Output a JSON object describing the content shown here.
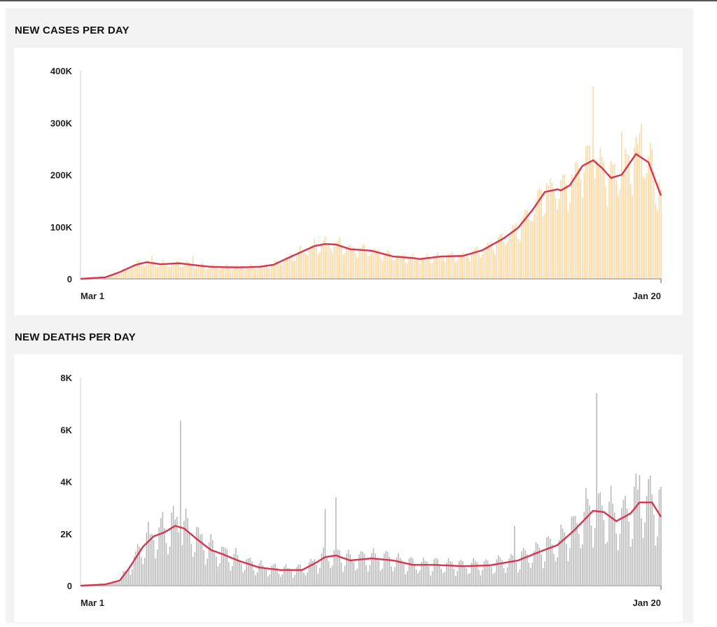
{
  "charts": [
    {
      "title": "NEW CASES PER DAY",
      "bar_color": "#fdd9a1",
      "line_color": "#d8344e",
      "y_ticks": [
        "0",
        "100K",
        "200K",
        "300K",
        "400K"
      ],
      "x_labels": [
        "Mar 1",
        "Jan 20"
      ],
      "chart_data": {
        "type": "bar",
        "unit": "thousands",
        "x_range_days": [
          0,
          325
        ],
        "ylim": [
          0,
          400
        ],
        "avg_7day_anchors": [
          [
            0,
            0
          ],
          [
            14,
            3
          ],
          [
            22,
            13
          ],
          [
            31,
            27
          ],
          [
            37,
            32
          ],
          [
            45,
            28
          ],
          [
            55,
            30
          ],
          [
            65,
            26
          ],
          [
            73,
            23
          ],
          [
            88,
            22
          ],
          [
            100,
            23
          ],
          [
            108,
            27
          ],
          [
            120,
            46
          ],
          [
            131,
            63
          ],
          [
            137,
            67
          ],
          [
            143,
            66
          ],
          [
            151,
            57
          ],
          [
            163,
            54
          ],
          [
            175,
            43
          ],
          [
            186,
            40
          ],
          [
            190,
            38
          ],
          [
            202,
            43
          ],
          [
            214,
            44
          ],
          [
            225,
            55
          ],
          [
            237,
            78
          ],
          [
            245,
            98
          ],
          [
            253,
            132
          ],
          [
            260,
            167
          ],
          [
            267,
            172
          ],
          [
            269,
            170
          ],
          [
            274,
            180
          ],
          [
            281,
            217
          ],
          [
            287,
            228
          ],
          [
            292,
            213
          ],
          [
            297,
            194
          ],
          [
            303,
            200
          ],
          [
            311,
            240
          ],
          [
            318,
            224
          ],
          [
            325,
            160
          ]
        ],
        "weekday_pattern": [
          0.82,
          0.78,
          1.0,
          1.08,
          1.15,
          1.12,
          1.02
        ],
        "spikes": [
          [
            40,
            45
          ],
          [
            63,
            44
          ],
          [
            287,
            370
          ],
          [
            314,
            298
          ],
          [
            313,
            280
          ],
          [
            303,
            283
          ],
          [
            278,
            225
          ],
          [
            320,
            250
          ]
        ]
      }
    },
    {
      "title": "NEW DEATHS PER DAY",
      "bar_color": "#b9b9b9",
      "line_color": "#d8344e",
      "y_ticks": [
        "0",
        "2K",
        "4K",
        "6K",
        "8K"
      ],
      "x_labels": [
        "Mar 1",
        "Jan 20"
      ],
      "chart_data": {
        "type": "bar",
        "unit": "thousands",
        "x_range_days": [
          0,
          325
        ],
        "ylim": [
          0,
          8
        ],
        "avg_7day_anchors": [
          [
            0,
            0
          ],
          [
            14,
            0.05
          ],
          [
            22,
            0.2
          ],
          [
            27,
            0.65
          ],
          [
            35,
            1.5
          ],
          [
            41,
            1.9
          ],
          [
            47,
            2.05
          ],
          [
            53,
            2.3
          ],
          [
            58,
            2.2
          ],
          [
            65,
            1.8
          ],
          [
            73,
            1.37
          ],
          [
            80,
            1.2
          ],
          [
            88,
            0.97
          ],
          [
            100,
            0.7
          ],
          [
            112,
            0.6
          ],
          [
            124,
            0.6
          ],
          [
            131,
            0.85
          ],
          [
            137,
            1.1
          ],
          [
            143,
            1.16
          ],
          [
            151,
            0.97
          ],
          [
            163,
            1.05
          ],
          [
            175,
            0.97
          ],
          [
            186,
            0.8
          ],
          [
            198,
            0.8
          ],
          [
            214,
            0.75
          ],
          [
            229,
            0.78
          ],
          [
            245,
            0.97
          ],
          [
            257,
            1.3
          ],
          [
            267,
            1.56
          ],
          [
            276,
            2.1
          ],
          [
            287,
            2.88
          ],
          [
            293,
            2.83
          ],
          [
            300,
            2.48
          ],
          [
            308,
            2.78
          ],
          [
            313,
            3.2
          ],
          [
            320,
            3.2
          ],
          [
            325,
            2.65
          ]
        ],
        "weekday_pattern": [
          0.55,
          0.7,
          1.2,
          1.35,
          1.25,
          1.1,
          0.85
        ],
        "spikes": [
          [
            56,
            6.35
          ],
          [
            60,
            2.6
          ],
          [
            289,
            7.4
          ],
          [
            137,
            2.95
          ],
          [
            143,
            3.4
          ],
          [
            313,
            4.25
          ],
          [
            318,
            4.1
          ],
          [
            325,
            3.8
          ],
          [
            243,
            2.3
          ]
        ]
      }
    }
  ]
}
